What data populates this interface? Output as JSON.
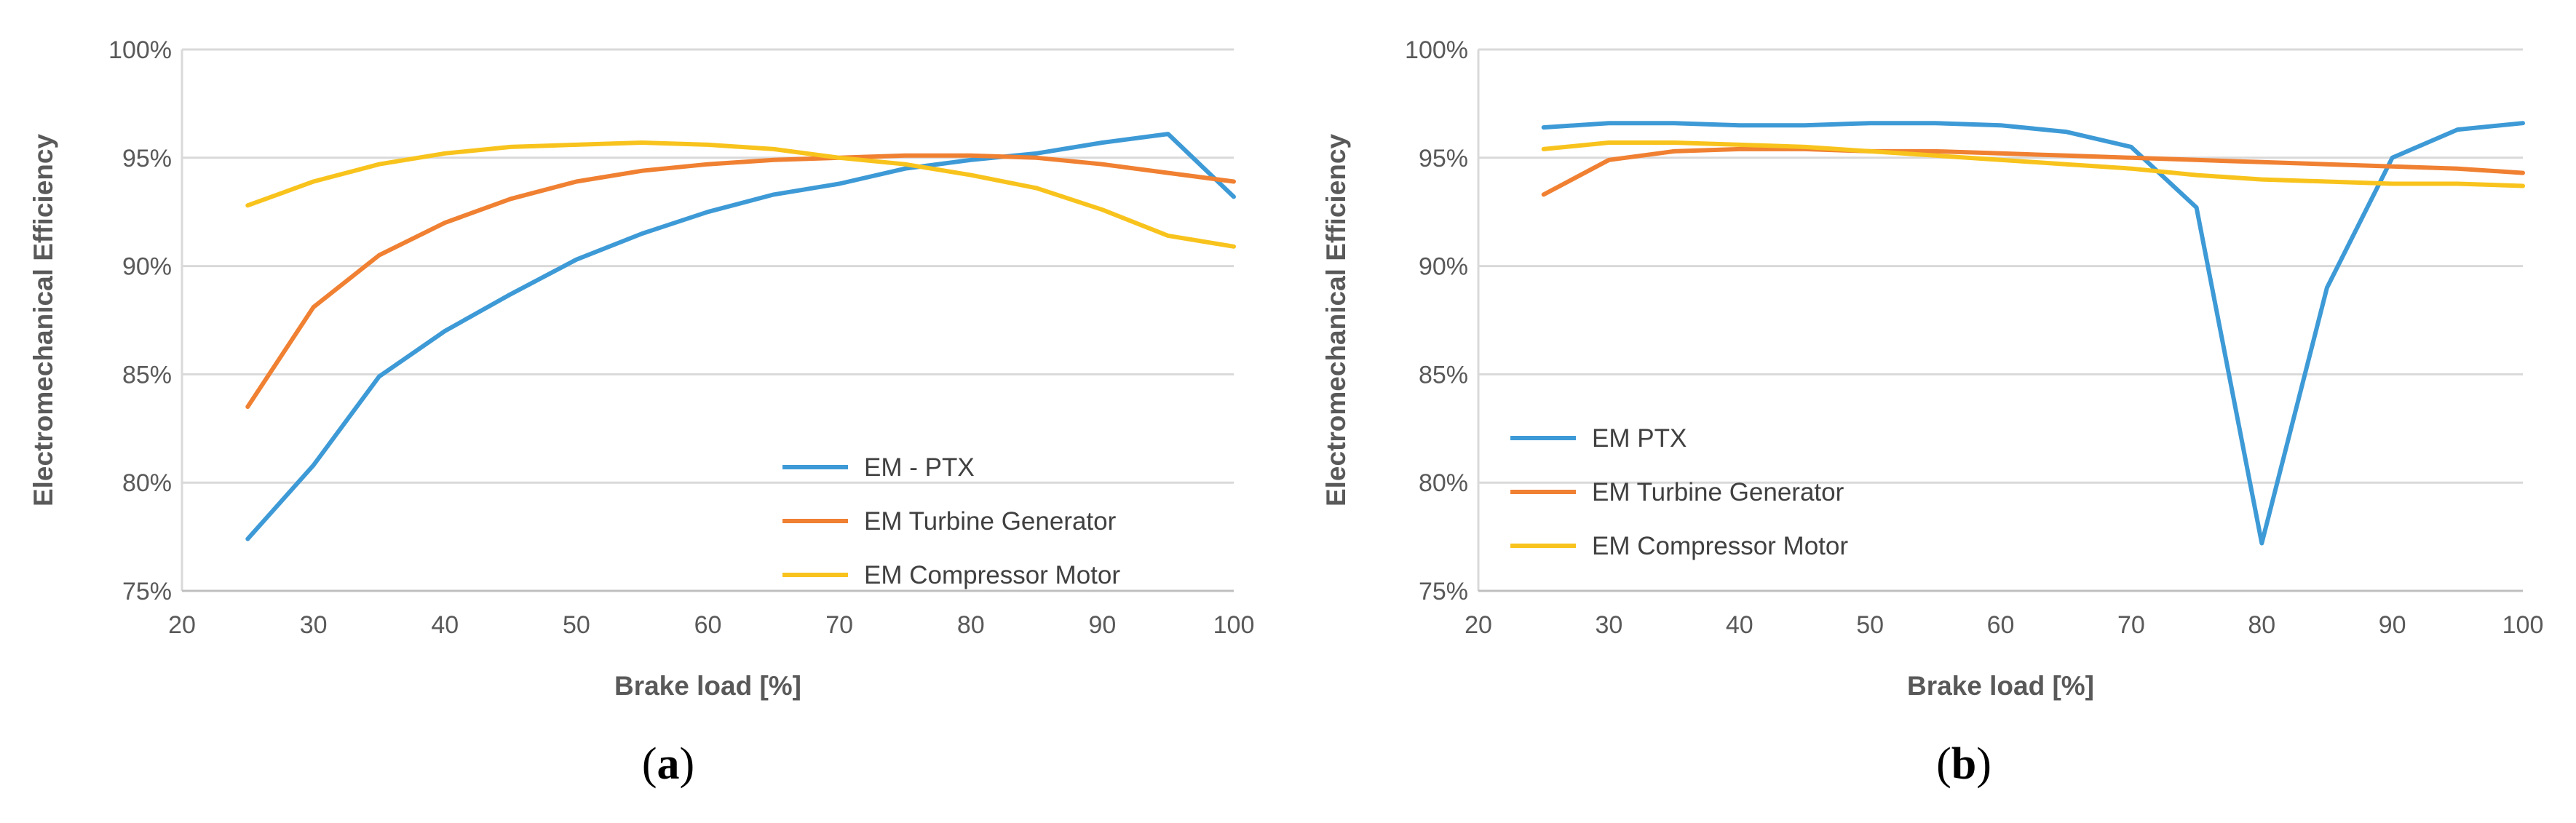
{
  "panels": [
    {
      "label_open": "(",
      "label_letter": "a",
      "label_close": ")"
    },
    {
      "label_open": "(",
      "label_letter": "b",
      "label_close": ")"
    }
  ],
  "chart_data": [
    {
      "type": "line",
      "title": "",
      "xlabel": "Brake load  [%]",
      "ylabel": "Electromechanical Efficiency",
      "xlim": [
        20,
        100
      ],
      "ylim": [
        75,
        100
      ],
      "xticks": [
        "20",
        "30",
        "40",
        "50",
        "60",
        "70",
        "80",
        "90",
        "100"
      ],
      "yticks": [
        "75%",
        "80%",
        "85%",
        "90%",
        "95%",
        "100%"
      ],
      "grid": "horizontal",
      "legend_position": "bottom-right",
      "x": [
        25,
        30,
        35,
        40,
        45,
        50,
        55,
        60,
        65,
        70,
        75,
        80,
        85,
        90,
        95,
        100
      ],
      "series": [
        {
          "name": "EM - PTX",
          "color": "#3d9ad6",
          "values": [
            77.4,
            80.8,
            84.9,
            87.0,
            88.7,
            90.3,
            91.5,
            92.5,
            93.3,
            93.8,
            94.5,
            94.9,
            95.2,
            95.7,
            96.1,
            93.2
          ]
        },
        {
          "name": "EM Turbine Generator",
          "color": "#f08032",
          "values": [
            83.5,
            88.1,
            90.5,
            92.0,
            93.1,
            93.9,
            94.4,
            94.7,
            94.9,
            95.0,
            95.1,
            95.1,
            95.0,
            94.7,
            94.3,
            93.9
          ]
        },
        {
          "name": "EM Compressor Motor",
          "color": "#f8c31c",
          "values": [
            92.8,
            93.9,
            94.7,
            95.2,
            95.5,
            95.6,
            95.7,
            95.6,
            95.4,
            95.0,
            94.7,
            94.2,
            93.6,
            92.6,
            91.4,
            90.9
          ]
        }
      ]
    },
    {
      "type": "line",
      "title": "",
      "xlabel": "Brake load  [%]",
      "ylabel": "Electromechanical Efficiency",
      "xlim": [
        20,
        100
      ],
      "ylim": [
        75,
        100
      ],
      "xticks": [
        "20",
        "30",
        "40",
        "50",
        "60",
        "70",
        "80",
        "90",
        "100"
      ],
      "yticks": [
        "75%",
        "80%",
        "85%",
        "90%",
        "95%",
        "100%"
      ],
      "grid": "horizontal",
      "legend_position": "bottom-left",
      "x": [
        25,
        30,
        35,
        40,
        45,
        50,
        55,
        60,
        65,
        70,
        75,
        80,
        85,
        90,
        95,
        100
      ],
      "series": [
        {
          "name": "EM PTX",
          "color": "#3d9ad6",
          "values": [
            96.4,
            96.6,
            96.6,
            96.5,
            96.5,
            96.6,
            96.6,
            96.5,
            96.2,
            95.5,
            92.7,
            77.2,
            89.0,
            95.0,
            96.3,
            96.6
          ]
        },
        {
          "name": "EM Turbine Generator",
          "color": "#f08032",
          "values": [
            93.3,
            94.9,
            95.3,
            95.4,
            95.4,
            95.3,
            95.3,
            95.2,
            95.1,
            95.0,
            94.9,
            94.8,
            94.7,
            94.6,
            94.5,
            94.3
          ]
        },
        {
          "name": "EM Compressor Motor",
          "color": "#f8c31c",
          "values": [
            95.4,
            95.7,
            95.7,
            95.6,
            95.5,
            95.3,
            95.1,
            94.9,
            94.7,
            94.5,
            94.2,
            94.0,
            93.9,
            93.8,
            93.8,
            93.7
          ]
        }
      ]
    }
  ]
}
